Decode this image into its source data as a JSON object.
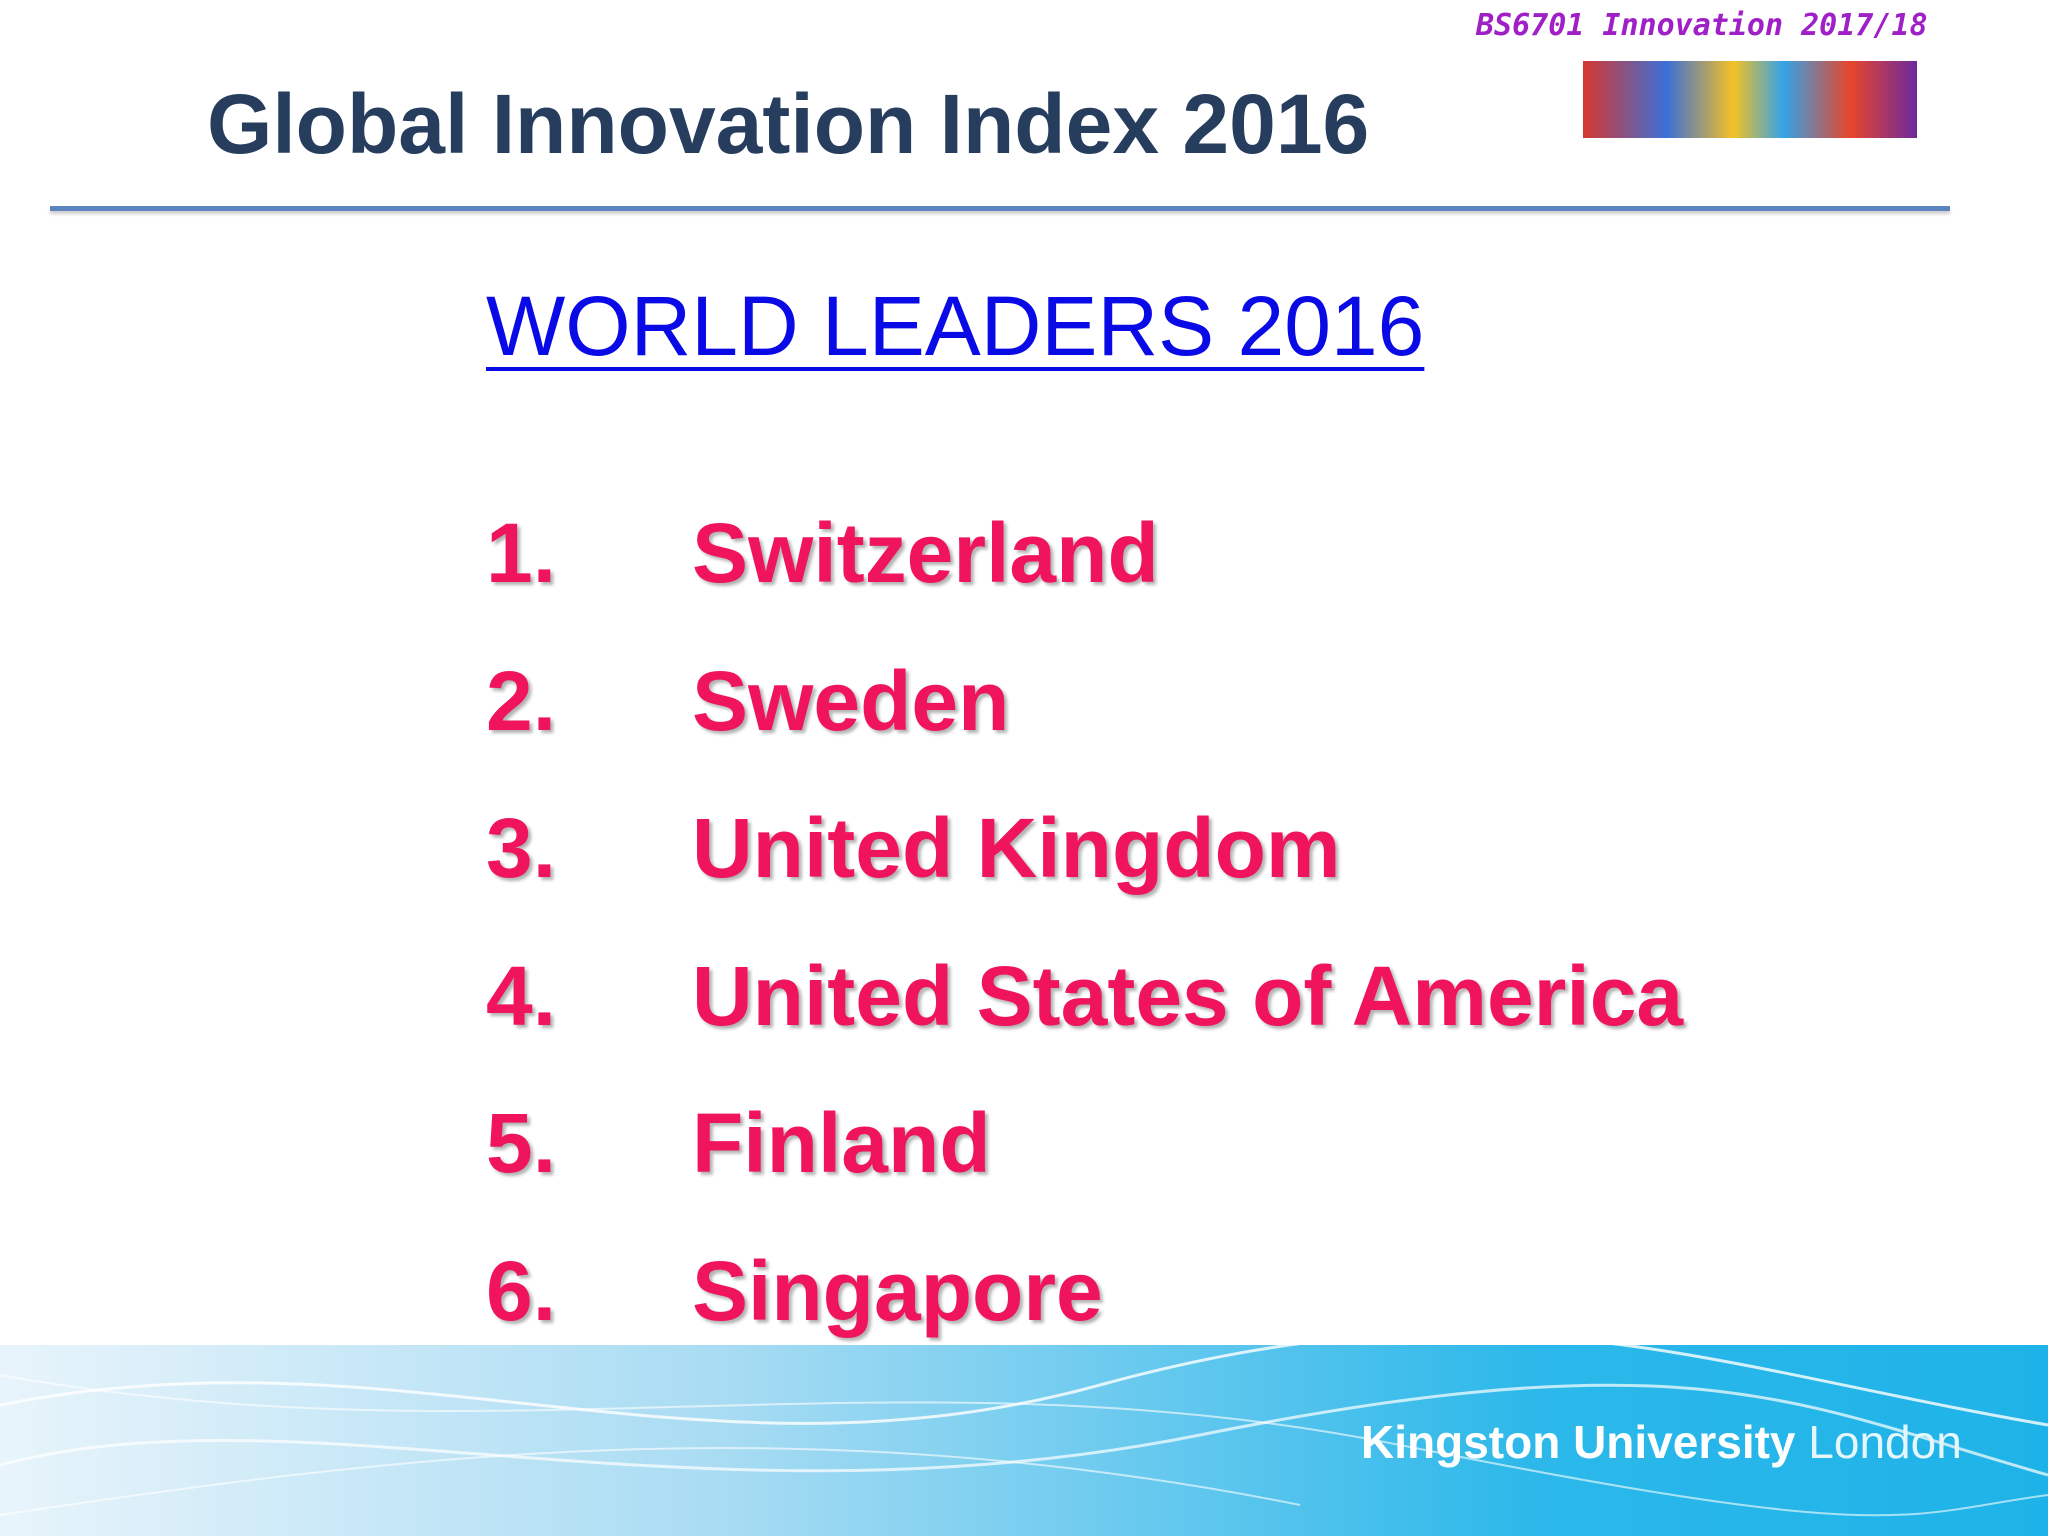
{
  "header": {
    "course_note": "BS6701 Innovation 2017/18",
    "title": "Global Innovation Index 2016"
  },
  "content": {
    "subtitle": "WORLD LEADERS 2016",
    "list": [
      {
        "number": "1.",
        "name": "Switzerland"
      },
      {
        "number": "2.",
        "name": "Sweden"
      },
      {
        "number": "3.",
        "name": "United Kingdom"
      },
      {
        "number": "4.",
        "name": "United States of America"
      },
      {
        "number": "5.",
        "name": "Finland"
      },
      {
        "number": "6.",
        "name": "Singapore"
      }
    ]
  },
  "footer": {
    "brand": "Kingston University",
    "city": "London"
  }
}
